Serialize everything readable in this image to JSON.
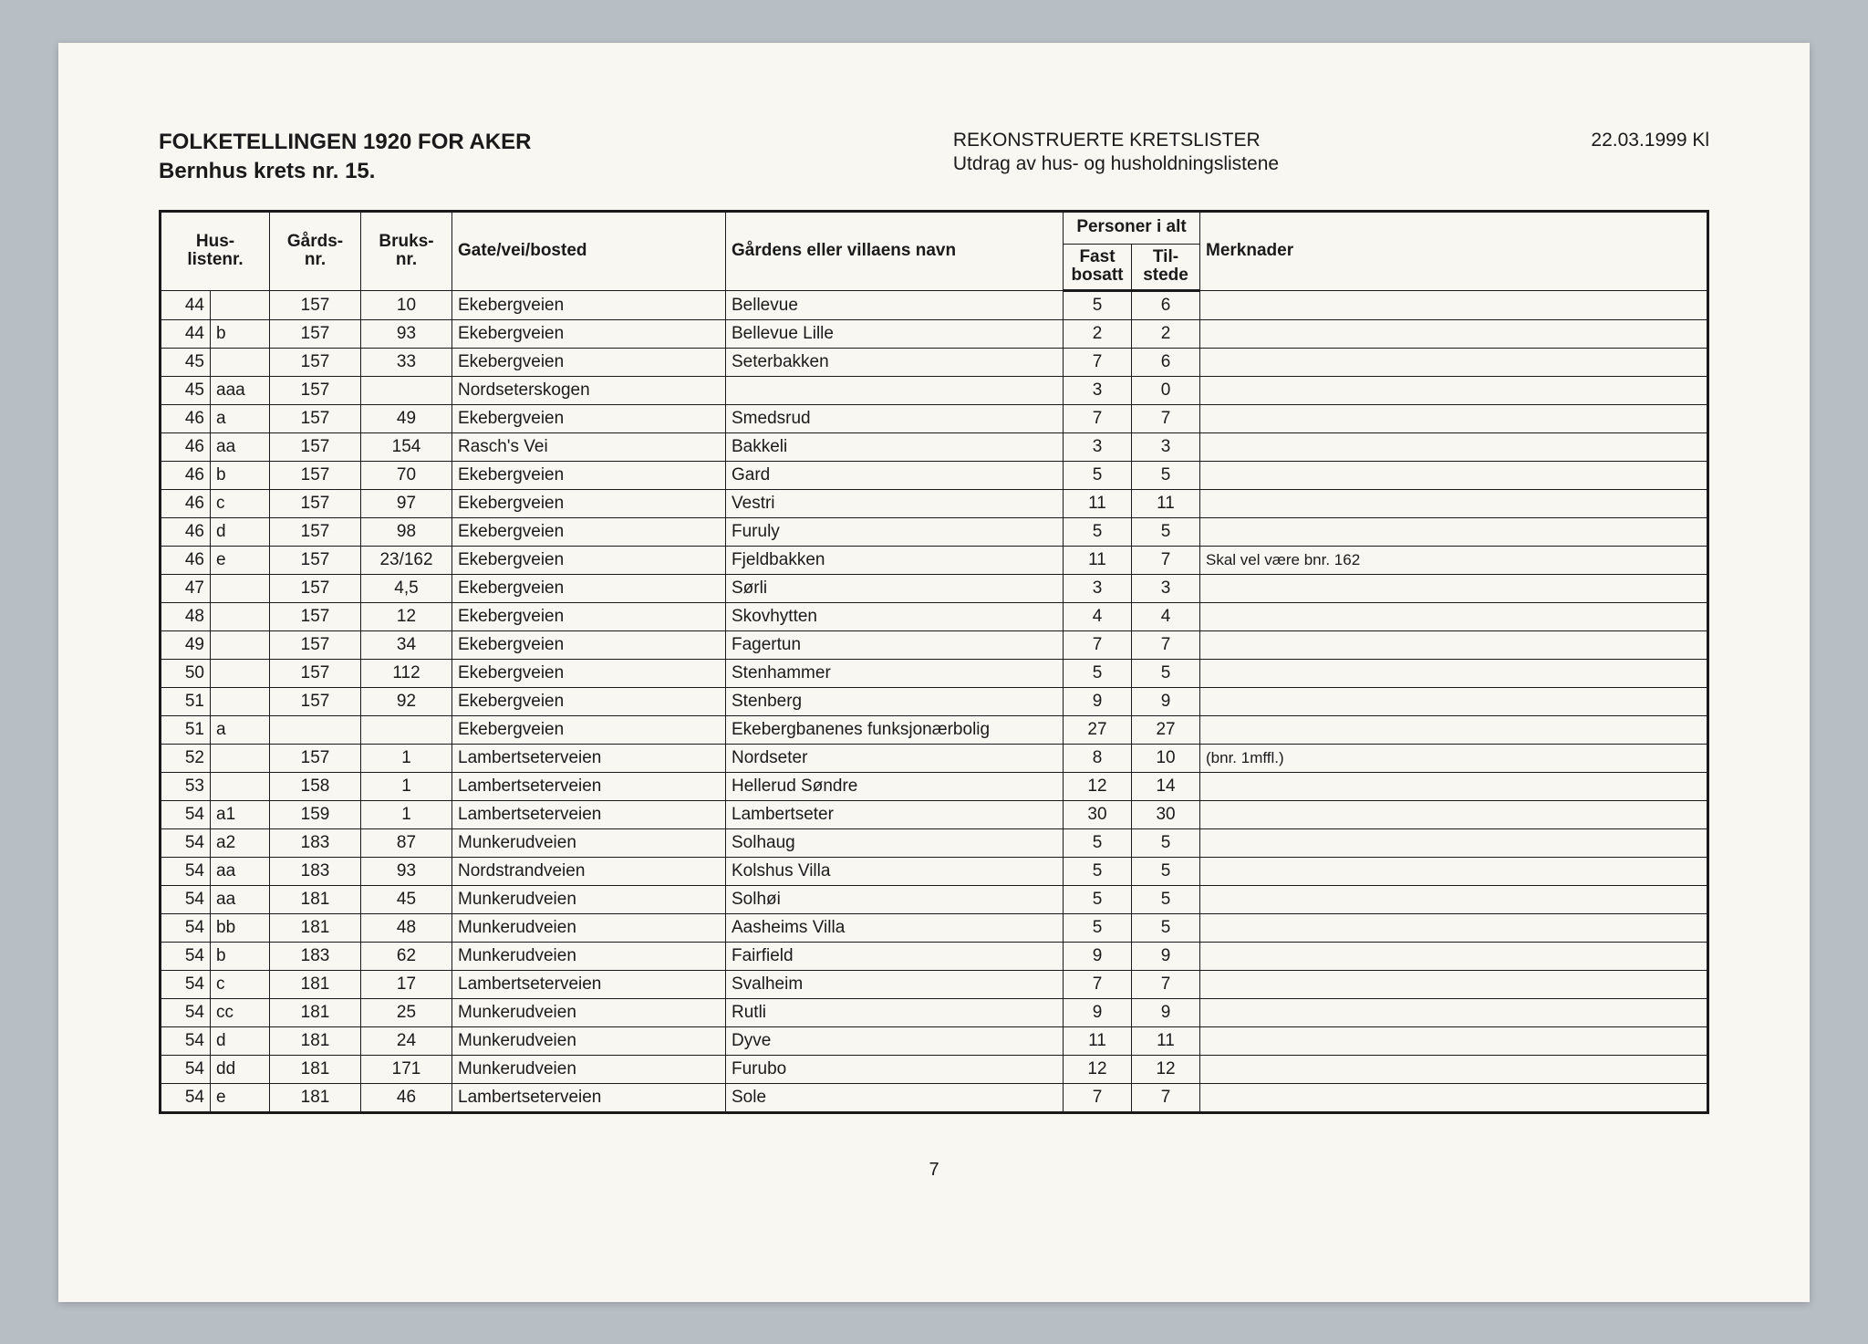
{
  "header": {
    "title_main": "FOLKETELLINGEN 1920 FOR AKER",
    "title_sub": "Bernhus krets nr. 15.",
    "center_title": "REKONSTRUERTE KRETSLISTER",
    "center_sub": "Utdrag av hus- og husholdningslistene",
    "date": "22.03.1999 Kl"
  },
  "columns": {
    "husliste": "Hus-\nlistenr.",
    "gards": "Gårds-\nnr.",
    "bruks": "Bruks-\nnr.",
    "gate": "Gate/vei/bosted",
    "gardens": "Gårdens eller villaens navn",
    "personer": "Personer i alt",
    "fast": "Fast\nbosatt",
    "tilstede": "Til-\nstede",
    "merknader": "Merknader"
  },
  "rows": [
    {
      "hn": "44",
      "hs": "",
      "g": "157",
      "b": "10",
      "gate": "Ekebergveien",
      "gardens": "Bellevue",
      "fast": "5",
      "til": "6",
      "merk": ""
    },
    {
      "hn": "44",
      "hs": "b",
      "g": "157",
      "b": "93",
      "gate": "Ekebergveien",
      "gardens": "Bellevue Lille",
      "fast": "2",
      "til": "2",
      "merk": ""
    },
    {
      "hn": "45",
      "hs": "",
      "g": "157",
      "b": "33",
      "gate": "Ekebergveien",
      "gardens": "Seterbakken",
      "fast": "7",
      "til": "6",
      "merk": ""
    },
    {
      "hn": "45",
      "hs": "aaa",
      "g": "157",
      "b": "",
      "gate": "Nordseterskogen",
      "gardens": "",
      "fast": "3",
      "til": "0",
      "merk": ""
    },
    {
      "hn": "46",
      "hs": "a",
      "g": "157",
      "b": "49",
      "gate": "Ekebergveien",
      "gardens": "Smedsrud",
      "fast": "7",
      "til": "7",
      "merk": ""
    },
    {
      "hn": "46",
      "hs": "aa",
      "g": "157",
      "b": "154",
      "gate": "Rasch's Vei",
      "gardens": "Bakkeli",
      "fast": "3",
      "til": "3",
      "merk": ""
    },
    {
      "hn": "46",
      "hs": "b",
      "g": "157",
      "b": "70",
      "gate": "Ekebergveien",
      "gardens": "Gard",
      "fast": "5",
      "til": "5",
      "merk": ""
    },
    {
      "hn": "46",
      "hs": "c",
      "g": "157",
      "b": "97",
      "gate": "Ekebergveien",
      "gardens": "Vestri",
      "fast": "11",
      "til": "11",
      "merk": ""
    },
    {
      "hn": "46",
      "hs": "d",
      "g": "157",
      "b": "98",
      "gate": "Ekebergveien",
      "gardens": "Furuly",
      "fast": "5",
      "til": "5",
      "merk": ""
    },
    {
      "hn": "46",
      "hs": "e",
      "g": "157",
      "b": "23/162",
      "gate": "Ekebergveien",
      "gardens": "Fjeldbakken",
      "fast": "11",
      "til": "7",
      "merk": "Skal vel være bnr. 162"
    },
    {
      "hn": "47",
      "hs": "",
      "g": "157",
      "b": "4,5",
      "gate": "Ekebergveien",
      "gardens": "Sørli",
      "fast": "3",
      "til": "3",
      "merk": ""
    },
    {
      "hn": "48",
      "hs": "",
      "g": "157",
      "b": "12",
      "gate": "Ekebergveien",
      "gardens": "Skovhytten",
      "fast": "4",
      "til": "4",
      "merk": ""
    },
    {
      "hn": "49",
      "hs": "",
      "g": "157",
      "b": "34",
      "gate": "Ekebergveien",
      "gardens": "Fagertun",
      "fast": "7",
      "til": "7",
      "merk": ""
    },
    {
      "hn": "50",
      "hs": "",
      "g": "157",
      "b": "112",
      "gate": "Ekebergveien",
      "gardens": "Stenhammer",
      "fast": "5",
      "til": "5",
      "merk": ""
    },
    {
      "hn": "51",
      "hs": "",
      "g": "157",
      "b": "92",
      "gate": "Ekebergveien",
      "gardens": "Stenberg",
      "fast": "9",
      "til": "9",
      "merk": ""
    },
    {
      "hn": "51",
      "hs": "a",
      "g": "",
      "b": "",
      "gate": "Ekebergveien",
      "gardens": "Ekebergbanenes funksjonærbolig",
      "fast": "27",
      "til": "27",
      "merk": ""
    },
    {
      "hn": "52",
      "hs": "",
      "g": "157",
      "b": "1",
      "gate": "Lambertseterveien",
      "gardens": "Nordseter",
      "fast": "8",
      "til": "10",
      "merk": "(bnr. 1mffl.)"
    },
    {
      "hn": "53",
      "hs": "",
      "g": "158",
      "b": "1",
      "gate": "Lambertseterveien",
      "gardens": "Hellerud Søndre",
      "fast": "12",
      "til": "14",
      "merk": ""
    },
    {
      "hn": "54",
      "hs": "a1",
      "g": "159",
      "b": "1",
      "gate": "Lambertseterveien",
      "gardens": "Lambertseter",
      "fast": "30",
      "til": "30",
      "merk": ""
    },
    {
      "hn": "54",
      "hs": "a2",
      "g": "183",
      "b": "87",
      "gate": "Munkerudveien",
      "gardens": "Solhaug",
      "fast": "5",
      "til": "5",
      "merk": ""
    },
    {
      "hn": "54",
      "hs": "aa",
      "g": "183",
      "b": "93",
      "gate": "Nordstrandveien",
      "gardens": "Kolshus Villa",
      "fast": "5",
      "til": "5",
      "merk": ""
    },
    {
      "hn": "54",
      "hs": "aa",
      "g": "181",
      "b": "45",
      "gate": "Munkerudveien",
      "gardens": "Solhøi",
      "fast": "5",
      "til": "5",
      "merk": ""
    },
    {
      "hn": "54",
      "hs": "bb",
      "g": "181",
      "b": "48",
      "gate": "Munkerudveien",
      "gardens": "Aasheims Villa",
      "fast": "5",
      "til": "5",
      "merk": ""
    },
    {
      "hn": "54",
      "hs": "b",
      "g": "183",
      "b": "62",
      "gate": "Munkerudveien",
      "gardens": "Fairfield",
      "fast": "9",
      "til": "9",
      "merk": ""
    },
    {
      "hn": "54",
      "hs": "c",
      "g": "181",
      "b": "17",
      "gate": "Lambertseterveien",
      "gardens": "Svalheim",
      "fast": "7",
      "til": "7",
      "merk": ""
    },
    {
      "hn": "54",
      "hs": "cc",
      "g": "181",
      "b": "25",
      "gate": "Munkerudveien",
      "gardens": "Rutli",
      "fast": "9",
      "til": "9",
      "merk": ""
    },
    {
      "hn": "54",
      "hs": "d",
      "g": "181",
      "b": "24",
      "gate": "Munkerudveien",
      "gardens": "Dyve",
      "fast": "11",
      "til": "11",
      "merk": ""
    },
    {
      "hn": "54",
      "hs": "dd",
      "g": "181",
      "b": "171",
      "gate": "Munkerudveien",
      "gardens": "Furubo",
      "fast": "12",
      "til": "12",
      "merk": ""
    },
    {
      "hn": "54",
      "hs": "e",
      "g": "181",
      "b": "46",
      "gate": "Lambertseterveien",
      "gardens": "Sole",
      "fast": "7",
      "til": "7",
      "merk": ""
    }
  ],
  "page_number": "7"
}
